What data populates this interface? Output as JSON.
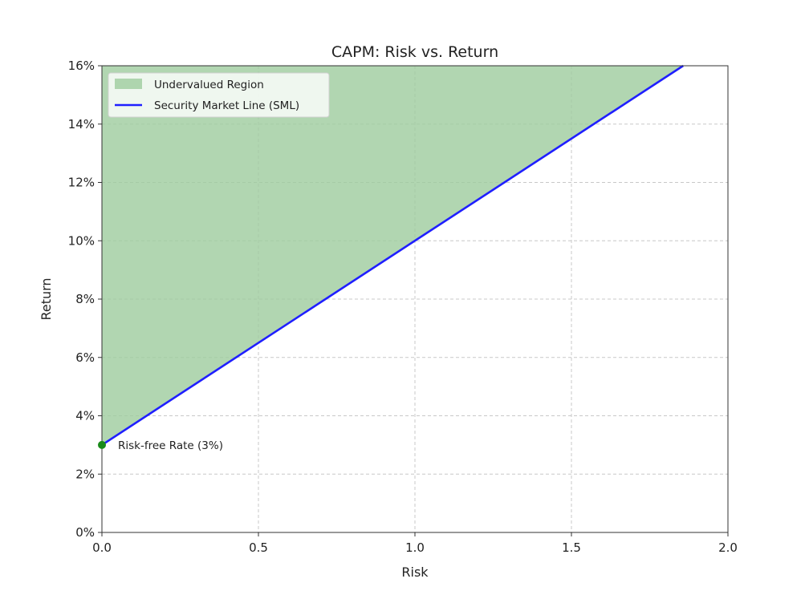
{
  "chart_data": {
    "type": "line",
    "title": "CAPM: Risk vs. Return",
    "xlabel": "Risk",
    "ylabel": "Return",
    "xlim": [
      0,
      2
    ],
    "ylim": [
      0,
      16
    ],
    "x_ticks": [
      0,
      0.5,
      1,
      1.5,
      2
    ],
    "x_tick_labels": [
      "0.0",
      "0.5",
      "1.0",
      "1.5",
      "2.0"
    ],
    "y_ticks": [
      0,
      2,
      4,
      6,
      8,
      10,
      12,
      14,
      16
    ],
    "y_tick_labels": [
      "0%",
      "2%",
      "4%",
      "6%",
      "8%",
      "10%",
      "12%",
      "14%",
      "16%"
    ],
    "grid": true,
    "legend_position": "top-left",
    "series": [
      {
        "name": "Security Market Line (SML)",
        "kind": "line",
        "color": "#1f1fff",
        "x": [
          0,
          1.857
        ],
        "y": [
          3,
          16
        ]
      },
      {
        "name": "Undervalued Region",
        "kind": "area-above-line",
        "color": "#9dcc9d",
        "x": [
          0,
          1.857
        ],
        "y": [
          3,
          16
        ]
      }
    ],
    "annotations": [
      {
        "label": "Risk-free Rate (3%)",
        "x": 0,
        "y": 3,
        "marker_color": "#1a8a1a"
      }
    ]
  }
}
